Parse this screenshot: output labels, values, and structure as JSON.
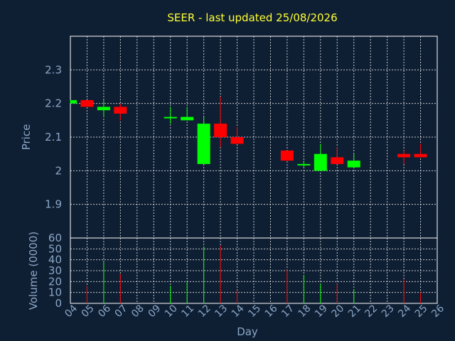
{
  "chart_data": [
    {
      "type": "candlestick",
      "title": "SEER - last updated 25/08/2026",
      "ylabel": "Price",
      "ylim": [
        1.8,
        2.4
      ],
      "y_ticks": [
        1.9,
        2,
        2.1,
        2.2,
        2.3
      ],
      "y_tick_labels": [
        "1.9",
        "2",
        "2.1",
        "2.2",
        "2.3"
      ],
      "grid": true,
      "colors": {
        "up": "#00ff00",
        "down": "#ff0000",
        "title": "#ffff33",
        "axis_text": "#8aa6c6"
      },
      "candles": [
        {
          "day": "04",
          "open": 2.2,
          "close": 2.21,
          "high": 2.21,
          "low": 2.2
        },
        {
          "day": "05",
          "open": 2.21,
          "close": 2.19,
          "high": 2.21,
          "low": 2.19
        },
        {
          "day": "06",
          "open": 2.18,
          "close": 2.19,
          "high": 2.21,
          "low": 2.16
        },
        {
          "day": "07",
          "open": 2.19,
          "close": 2.17,
          "high": 2.2,
          "low": 2.15
        },
        {
          "day": "10",
          "open": 2.16,
          "close": 2.16,
          "high": 2.19,
          "low": 2.14
        },
        {
          "day": "11",
          "open": 2.15,
          "close": 2.16,
          "high": 2.19,
          "low": 2.15
        },
        {
          "day": "12",
          "open": 2.02,
          "close": 2.14,
          "high": 2.16,
          "low": 2.02
        },
        {
          "day": "13",
          "open": 2.14,
          "close": 2.1,
          "high": 2.22,
          "low": 2.07
        },
        {
          "day": "14",
          "open": 2.1,
          "close": 2.08,
          "high": 2.13,
          "low": 2.08
        },
        {
          "day": "17",
          "open": 2.06,
          "close": 2.03,
          "high": 2.06,
          "low": 2.03
        },
        {
          "day": "18",
          "open": 2.02,
          "close": 2.02,
          "high": 2.03,
          "low": 2.01
        },
        {
          "day": "19",
          "open": 2.0,
          "close": 2.05,
          "high": 2.08,
          "low": 2.0
        },
        {
          "day": "20",
          "open": 2.04,
          "close": 2.02,
          "high": 2.07,
          "low": 2.02
        },
        {
          "day": "21",
          "open": 2.01,
          "close": 2.03,
          "high": 2.05,
          "low": 2.01
        },
        {
          "day": "24",
          "open": 2.05,
          "close": 2.04,
          "high": 2.06,
          "low": 2.02
        },
        {
          "day": "25",
          "open": 2.05,
          "close": 2.04,
          "high": 2.08,
          "low": 2.04
        }
      ]
    },
    {
      "type": "bar",
      "ylabel": "Volume (0000)",
      "xlabel": "Day",
      "ylim": [
        0,
        60
      ],
      "y_ticks": [
        0,
        10,
        20,
        30,
        40,
        50,
        60
      ],
      "y_tick_labels": [
        "0",
        "10",
        "20",
        "30",
        "40",
        "50",
        "60"
      ],
      "categories": [
        "04",
        "05",
        "06",
        "07",
        "08",
        "09",
        "10",
        "11",
        "12",
        "13",
        "14",
        "15",
        "16",
        "17",
        "18",
        "19",
        "20",
        "21",
        "22",
        "23",
        "24",
        "25",
        "26"
      ],
      "bars": [
        {
          "day": "05",
          "value": 16,
          "direction": "down"
        },
        {
          "day": "06",
          "value": 38,
          "direction": "up"
        },
        {
          "day": "07",
          "value": 27,
          "direction": "down"
        },
        {
          "day": "10",
          "value": 16,
          "direction": "up"
        },
        {
          "day": "11",
          "value": 20,
          "direction": "up"
        },
        {
          "day": "12",
          "value": 52,
          "direction": "up"
        },
        {
          "day": "13",
          "value": 53,
          "direction": "down"
        },
        {
          "day": "14",
          "value": 12,
          "direction": "down"
        },
        {
          "day": "17",
          "value": 31,
          "direction": "down"
        },
        {
          "day": "18",
          "value": 26,
          "direction": "up"
        },
        {
          "day": "19",
          "value": 18,
          "direction": "up"
        },
        {
          "day": "20",
          "value": 18,
          "direction": "down"
        },
        {
          "day": "21",
          "value": 13,
          "direction": "up"
        },
        {
          "day": "24",
          "value": 22,
          "direction": "down"
        },
        {
          "day": "25",
          "value": 10,
          "direction": "down"
        }
      ]
    }
  ]
}
